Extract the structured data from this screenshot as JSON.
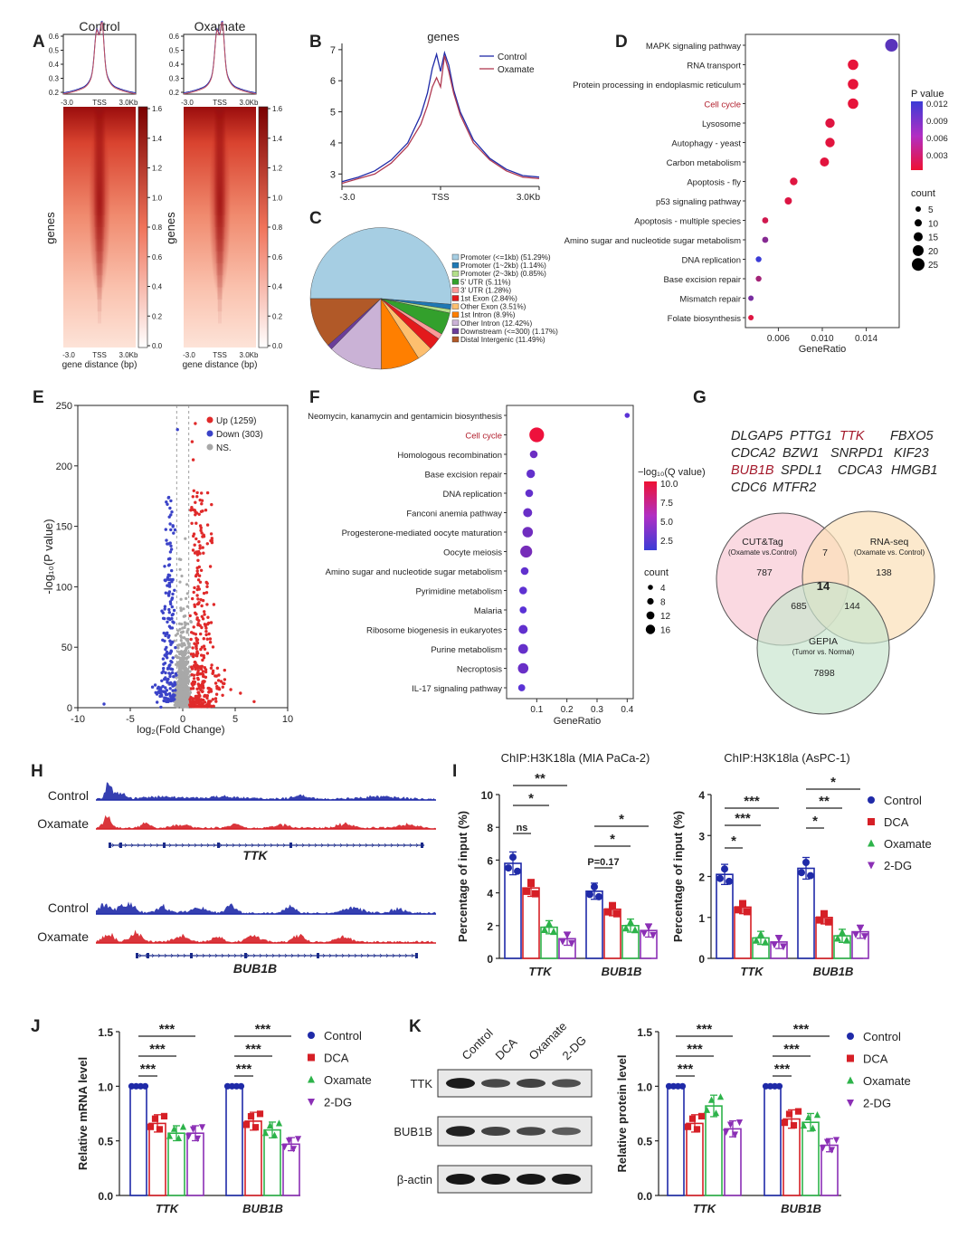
{
  "panels": [
    "A",
    "B",
    "C",
    "D",
    "E",
    "F",
    "G",
    "H",
    "I",
    "J",
    "K"
  ],
  "colors": {
    "control": "#1f2aa8",
    "dca": "#d61f26",
    "oxamate": "#2db34a",
    "twodg": "#8b2fb5",
    "heat_low": "#ffffff",
    "heat_high": "#8b0000",
    "ns_gray": "#a8a8a8"
  },
  "panel_a": {
    "titles": [
      "Control",
      "Oxamate"
    ],
    "y_ticks": [
      "0.6",
      "0.5",
      "0.4",
      "0.3",
      "0.2"
    ],
    "x_ticks": [
      "-3.0",
      "TSS",
      "3.0Kb"
    ],
    "heat_ylabel": "genes",
    "heat_xlabel": "gene distance (bp)",
    "colorbar_ticks": [
      "1.6",
      "1.4",
      "1.2",
      "1.0",
      "0.8",
      "0.6",
      "0.4",
      "0.2",
      "0.0"
    ]
  },
  "chart_data": [
    {
      "panel": "B",
      "type": "line",
      "title": "genes",
      "x_ticks": [
        "-3.0",
        "TSS",
        "3.0Kb"
      ],
      "y_ticks": [
        3,
        4,
        5,
        6,
        7
      ],
      "ylim": [
        2.6,
        7.2
      ],
      "x": [
        -3.0,
        -2.5,
        -2.0,
        -1.5,
        -1.0,
        -0.6,
        -0.4,
        -0.25,
        -0.12,
        0.0,
        0.12,
        0.25,
        0.4,
        0.6,
        1.0,
        1.5,
        2.0,
        2.5,
        3.0
      ],
      "series": [
        {
          "name": "Control",
          "values": [
            2.75,
            2.9,
            3.1,
            3.45,
            4.0,
            4.9,
            5.6,
            6.4,
            6.85,
            6.3,
            6.9,
            6.5,
            5.7,
            5.0,
            4.1,
            3.5,
            3.15,
            2.95,
            2.9
          ]
        },
        {
          "name": "Oxamate",
          "values": [
            2.7,
            2.85,
            3.0,
            3.35,
            3.9,
            4.6,
            5.2,
            5.8,
            6.1,
            5.8,
            6.8,
            6.3,
            5.6,
            4.9,
            4.0,
            3.45,
            3.1,
            2.9,
            2.85
          ]
        }
      ]
    },
    {
      "panel": "C",
      "type": "pie",
      "categories": [
        "Promoter (<=1kb) (51.29%)",
        "Promoter (1~2kb) (1.14%)",
        "Promoter (2~3kb) (0.85%)",
        "5' UTR (5.11%)",
        "3' UTR (1.28%)",
        "1st Exon (2.84%)",
        "Other Exon (3.51%)",
        "1st Intron (8.9%)",
        "Other Intron (12.42%)",
        "Downstream (<=300) (1.17%)",
        "Distal Intergenic (11.49%)"
      ],
      "values": [
        51.29,
        1.14,
        0.85,
        5.11,
        1.28,
        2.84,
        3.51,
        8.9,
        12.42,
        1.17,
        11.49
      ],
      "colors": [
        "#a6cee3",
        "#1f78b4",
        "#b2df8a",
        "#33a02c",
        "#fb9a99",
        "#e31a1c",
        "#fdbf6f",
        "#ff7f00",
        "#cab2d6",
        "#6a3d9a",
        "#b15928"
      ]
    },
    {
      "panel": "D",
      "type": "scatter",
      "xlabel": "GeneRatio",
      "x_ticks": [
        0.006,
        0.01,
        0.014
      ],
      "xlim": [
        0.003,
        0.017
      ],
      "color_title": "P value",
      "color_ticks": [
        "0.012",
        "0.009",
        "0.006",
        "0.003"
      ],
      "size_title": "count",
      "size_ticks": [
        5,
        10,
        15,
        20,
        25
      ],
      "terms": [
        "MAPK signaling pathway",
        "RNA transport",
        "Protein processing in endoplasmic reticulum",
        "Cell cycle",
        "Lysosome",
        "Autophagy - yeast",
        "Carbon metabolism",
        "Apoptosis - fly",
        "p53 signaling pathway",
        "Apoptosis - multiple species",
        "Amino sugar and nucleotide sugar metabolism",
        "DNA replication",
        "Base excision repair",
        "Mismatch repair",
        "Folate biosynthesis"
      ],
      "ratio": [
        0.0163,
        0.0128,
        0.0128,
        0.0128,
        0.0107,
        0.0107,
        0.0102,
        0.0074,
        0.0069,
        0.0048,
        0.0048,
        0.0042,
        0.0042,
        0.0035,
        0.0035
      ],
      "count": [
        25,
        19,
        19,
        19,
        16,
        16,
        15,
        11,
        10,
        7,
        7,
        6,
        6,
        5,
        5
      ],
      "pvalue": [
        0.01,
        0.0005,
        0.0005,
        0.0005,
        0.001,
        0.0008,
        0.0008,
        0.001,
        0.0012,
        0.002,
        0.007,
        0.012,
        0.005,
        0.008,
        0.001
      ]
    },
    {
      "panel": "E",
      "type": "scatter",
      "xlabel": "log₂(Fold Change)",
      "ylabel": "-log₁₀(P value)",
      "x_ticks": [
        -10,
        -5,
        0,
        5,
        10
      ],
      "y_ticks": [
        0,
        50,
        100,
        150,
        200,
        250
      ],
      "xlim": [
        -10,
        10
      ],
      "ylim": [
        0,
        250
      ],
      "legend": [
        "Up (1259)",
        "Down (303)",
        "NS."
      ]
    },
    {
      "panel": "F",
      "type": "scatter",
      "xlabel": "GeneRatio",
      "x_ticks": [
        0.1,
        0.2,
        0.3,
        0.4
      ],
      "xlim": [
        0.0,
        0.42
      ],
      "color_title": "−log₁₀(Q value)",
      "color_ticks": [
        "10.0",
        "7.5",
        "5.0",
        "2.5"
      ],
      "size_title": "count",
      "size_ticks": [
        4,
        8,
        12,
        16
      ],
      "terms": [
        "Neomycin, kanamycin and gentamicin biosynthesis",
        "Cell cycle",
        "Homologous recombination",
        "Base excision repair",
        "DNA replication",
        "Fanconi anemia pathway",
        "Progesterone-mediated oocyte maturation",
        "Oocyte meiosis",
        "Amino sugar and nucleotide sugar metabolism",
        "Pyrimidine metabolism",
        "Malaria",
        "Ribosome biogenesis in eukaryotes",
        "Purine metabolism",
        "Necroptosis",
        "IL-17 signaling pathway"
      ],
      "ratio": [
        0.4,
        0.1,
        0.09,
        0.08,
        0.075,
        0.07,
        0.07,
        0.065,
        0.06,
        0.055,
        0.055,
        0.055,
        0.055,
        0.055,
        0.05
      ],
      "count": [
        2,
        16,
        6,
        7,
        6,
        8,
        10,
        12,
        6,
        6,
        5,
        8,
        9,
        10,
        5
      ],
      "qvalue": [
        2.0,
        10.0,
        3.0,
        2.5,
        2.5,
        2.8,
        3.2,
        3.5,
        2.4,
        2.2,
        2.0,
        2.4,
        2.6,
        2.8,
        2.0
      ]
    },
    {
      "panel": "I-left",
      "type": "bar",
      "title": "ChIP:H3K18la (MIA PaCa-2)",
      "ylabel": "Percentage of input (%)",
      "categories": [
        "TTK",
        "BUB1B"
      ],
      "y_ticks": [
        0,
        2,
        4,
        6,
        8,
        10
      ],
      "ylim": [
        0,
        10
      ],
      "series": [
        {
          "name": "Control",
          "values": [
            5.8,
            4.1
          ]
        },
        {
          "name": "DCA",
          "values": [
            4.3,
            3.0
          ]
        },
        {
          "name": "Oxamate",
          "values": [
            1.9,
            2.0
          ]
        },
        {
          "name": "2-DG",
          "values": [
            1.2,
            1.7
          ]
        }
      ],
      "annotations": [
        "ns",
        "*",
        "**",
        "P=0.17",
        "*",
        "*"
      ]
    },
    {
      "panel": "I-right",
      "type": "bar",
      "title": "ChIP:H3K18la (AsPC-1)",
      "ylabel": "Percentage of input (%)",
      "categories": [
        "TTK",
        "BUB1B"
      ],
      "y_ticks": [
        0,
        1,
        2,
        3,
        4
      ],
      "ylim": [
        0,
        4
      ],
      "series": [
        {
          "name": "Control",
          "values": [
            2.05,
            2.2
          ]
        },
        {
          "name": "DCA",
          "values": [
            1.25,
            1.0
          ]
        },
        {
          "name": "Oxamate",
          "values": [
            0.5,
            0.55
          ]
        },
        {
          "name": "2-DG",
          "values": [
            0.4,
            0.65
          ]
        }
      ],
      "annotations": [
        "*",
        "***",
        "***",
        "*",
        "**",
        "*"
      ]
    },
    {
      "panel": "J",
      "type": "bar",
      "ylabel": "Relative mRNA level",
      "categories": [
        "TTK",
        "BUB1B"
      ],
      "y_ticks": [
        "0.0",
        "0.5",
        "1.0",
        "1.5"
      ],
      "ylim": [
        0,
        1.5
      ],
      "series": [
        {
          "name": "Control",
          "values": [
            1.0,
            1.0
          ]
        },
        {
          "name": "DCA",
          "values": [
            0.66,
            0.68
          ]
        },
        {
          "name": "Oxamate",
          "values": [
            0.57,
            0.6
          ]
        },
        {
          "name": "2-DG",
          "values": [
            0.57,
            0.47
          ]
        }
      ],
      "annotations": [
        "***",
        "***",
        "***",
        "***",
        "***",
        "***"
      ]
    },
    {
      "panel": "K",
      "type": "bar",
      "ylabel": "Relative protein level",
      "categories": [
        "TTK",
        "BUB1B"
      ],
      "y_ticks": [
        "0.0",
        "0.5",
        "1.0",
        "1.5"
      ],
      "ylim": [
        0,
        1.5
      ],
      "series": [
        {
          "name": "Control",
          "values": [
            1.0,
            1.0
          ]
        },
        {
          "name": "DCA",
          "values": [
            0.66,
            0.7
          ]
        },
        {
          "name": "Oxamate",
          "values": [
            0.82,
            0.67
          ]
        },
        {
          "name": "2-DG",
          "values": [
            0.61,
            0.46
          ]
        }
      ],
      "annotations": [
        "***",
        "***",
        "***",
        "***",
        "***",
        "***"
      ]
    }
  ],
  "panel_g": {
    "genes": [
      [
        "DLGAP5",
        "PTTG1",
        "TTK",
        "FBXO5"
      ],
      [
        "CDCA2",
        "BZW1",
        "SNRPD1",
        "KIF23"
      ],
      [
        "BUB1B",
        "SPDL1",
        "CDCA3",
        "HMGB1"
      ],
      [
        "CDC6",
        "MTFR2"
      ]
    ],
    "highlight_genes": [
      "TTK",
      "BUB1B"
    ],
    "sets": [
      {
        "name": "CUT&Tag",
        "sub": "(Oxamate vs.Control)",
        "color": "#f8c9d4"
      },
      {
        "name": "RNA-seq",
        "sub": "(Oxamate vs. Control)",
        "color": "#fbe0b8"
      },
      {
        "name": "GEPIA",
        "sub": "(Tumor vs. Normal)",
        "color": "#c9e6cf"
      }
    ],
    "counts": {
      "a_only": "787",
      "b_only": "138",
      "c_only": "7898",
      "ab": "7",
      "ac": "685",
      "bc": "144",
      "abc": "14"
    }
  },
  "panel_h": {
    "gene1": "TTK",
    "gene2": "BUB1B",
    "track_labels": [
      "Control",
      "Oxamate"
    ]
  },
  "panel_k": {
    "lanes": [
      "Control",
      "DCA",
      "Oxamate",
      "2-DG"
    ],
    "blots": [
      "TTK",
      "BUB1B",
      "β-actin"
    ]
  },
  "legend_groups": [
    "Control",
    "DCA",
    "Oxamate",
    "2-DG"
  ]
}
